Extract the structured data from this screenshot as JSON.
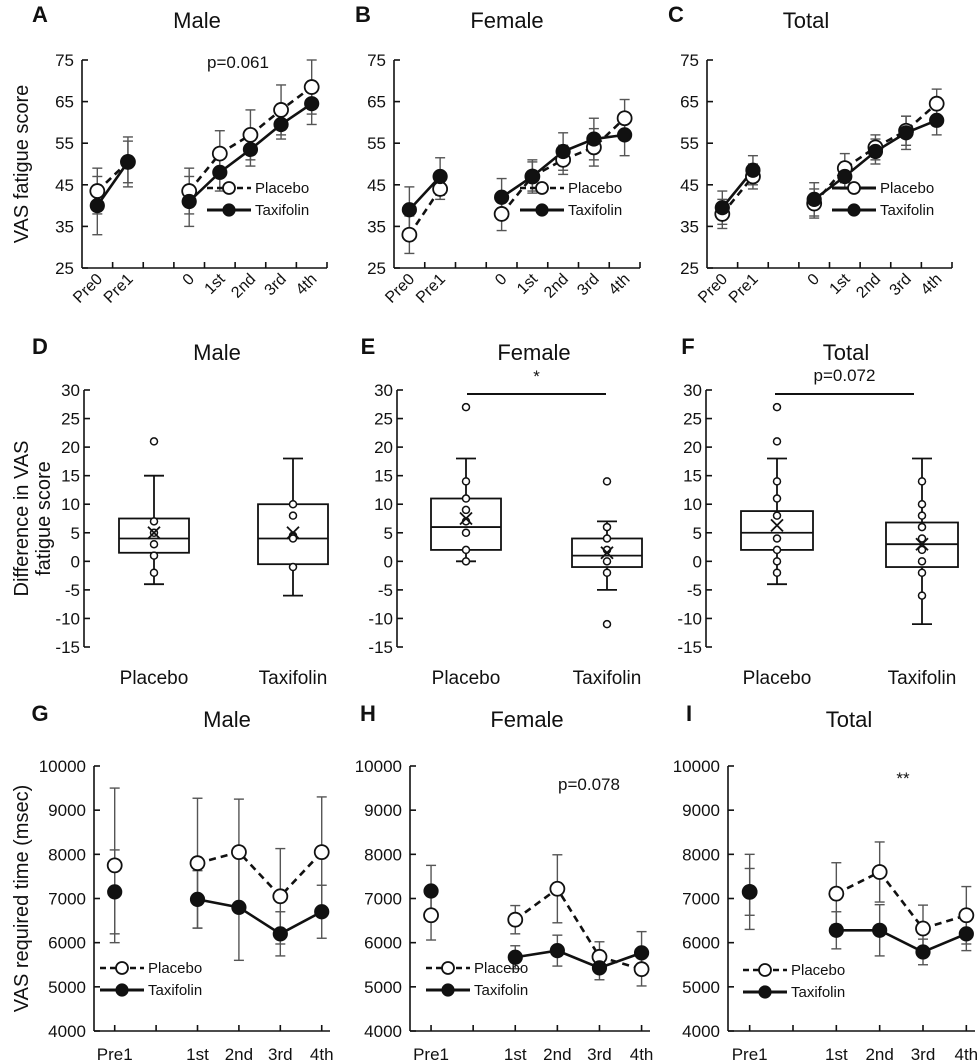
{
  "figure": {
    "legend": {
      "placebo": "Placebo",
      "taxifolin": "Taxifolin"
    },
    "colors": {
      "line": "#111111",
      "errorbar": "#555555",
      "open_marker_fill": "#ffffff",
      "filled_marker_fill": "#111111"
    }
  },
  "chart_data": [
    {
      "id": "A",
      "type": "line",
      "panel_letter": "A",
      "title": "Male",
      "ylabel": "VAS fatigue score",
      "xlabel": "",
      "categories": [
        "Pre0",
        "Pre1",
        "0",
        "1st",
        "2nd",
        "3rd",
        "4th"
      ],
      "ylim": [
        25,
        75
      ],
      "yticks": [
        25,
        35,
        45,
        55,
        65,
        75
      ],
      "annotation": "p=0.061",
      "legend_position": "lower-right",
      "series": [
        {
          "name": "Placebo",
          "style": "dashed-open",
          "values": [
            43.5,
            50.5,
            43.5,
            52.5,
            57,
            63,
            68.5
          ],
          "err": [
            5.5,
            6,
            5.5,
            5.5,
            6,
            6,
            6.5
          ]
        },
        {
          "name": "Taxifolin",
          "style": "solid-filled",
          "values": [
            40,
            50.5,
            41,
            48,
            53.5,
            59.5,
            64.5
          ],
          "err": [
            7,
            5,
            6,
            4.5,
            4,
            3.5,
            5
          ]
        }
      ]
    },
    {
      "id": "B",
      "type": "line",
      "panel_letter": "B",
      "title": "Female",
      "ylabel": "",
      "xlabel": "",
      "categories": [
        "Pre0",
        "Pre1",
        "0",
        "1st",
        "2nd",
        "3rd",
        "4th"
      ],
      "ylim": [
        25,
        75
      ],
      "yticks": [
        25,
        35,
        45,
        55,
        65,
        75
      ],
      "annotation": "",
      "legend_position": "lower-right",
      "series": [
        {
          "name": "Placebo",
          "style": "dashed-open",
          "values": [
            33,
            44,
            38,
            47,
            51,
            54,
            61
          ],
          "err": [
            4.5,
            2.5,
            4,
            4,
            3.5,
            4.5,
            4.5
          ]
        },
        {
          "name": "Taxifolin",
          "style": "solid-filled",
          "values": [
            39,
            47,
            42,
            47,
            53,
            56,
            57
          ],
          "err": [
            5.5,
            4.5,
            4.5,
            3.5,
            4.5,
            5,
            5
          ]
        }
      ]
    },
    {
      "id": "C",
      "type": "line",
      "panel_letter": "C",
      "title": "Total",
      "ylabel": "",
      "xlabel": "",
      "categories": [
        "Pre0",
        "Pre1",
        "0",
        "1st",
        "2nd",
        "3rd",
        "4th"
      ],
      "ylim": [
        25,
        75
      ],
      "yticks": [
        25,
        35,
        45,
        55,
        65,
        75
      ],
      "annotation": "",
      "legend_position": "lower-right",
      "series": [
        {
          "name": "Placebo",
          "style": "dashed-open",
          "values": [
            38,
            47,
            40.5,
            49,
            54,
            58,
            64.5
          ],
          "err": [
            3.5,
            3,
            3.5,
            3.5,
            3,
            3.5,
            3.5
          ]
        },
        {
          "name": "Taxifolin",
          "style": "solid-filled",
          "values": [
            39.5,
            48.5,
            41.5,
            47,
            53,
            57.5,
            60.5
          ],
          "err": [
            4,
            3.5,
            4,
            3,
            3,
            4,
            3.5
          ]
        }
      ]
    },
    {
      "id": "D",
      "type": "box",
      "panel_letter": "D",
      "title": "Male",
      "ylabel": "Difference in VAS fatigue score",
      "categories": [
        "Placebo",
        "Taxifolin"
      ],
      "ylim": [
        -15,
        30
      ],
      "yticks": [
        -15,
        -10,
        -5,
        0,
        5,
        10,
        15,
        20,
        25,
        30
      ],
      "annotation": "",
      "significance_bar": false,
      "boxes": [
        {
          "name": "Placebo",
          "whisker_low": -4,
          "q1": 1.5,
          "median": 4,
          "q3": 7.5,
          "whisker_high": 15,
          "mean": 5,
          "points": [
            21,
            7,
            5,
            3,
            1,
            -2
          ]
        },
        {
          "name": "Taxifolin",
          "whisker_low": -6,
          "q1": -0.5,
          "median": 4,
          "q3": 10,
          "whisker_high": 18,
          "mean": 5,
          "points": [
            10,
            8,
            4.5,
            4,
            -1
          ]
        }
      ]
    },
    {
      "id": "E",
      "type": "box",
      "panel_letter": "E",
      "title": "Female",
      "ylabel": "",
      "categories": [
        "Placebo",
        "Taxifolin"
      ],
      "ylim": [
        -15,
        30
      ],
      "yticks": [
        -15,
        -10,
        -5,
        0,
        5,
        10,
        15,
        20,
        25,
        30
      ],
      "annotation": "*",
      "significance_bar": true,
      "boxes": [
        {
          "name": "Placebo",
          "whisker_low": 0,
          "q1": 2,
          "median": 6,
          "q3": 11,
          "whisker_high": 18,
          "mean": 7.5,
          "points": [
            27,
            14,
            11,
            9,
            7,
            5,
            2,
            0
          ]
        },
        {
          "name": "Taxifolin",
          "whisker_low": -5,
          "q1": -1,
          "median": 1,
          "q3": 4,
          "whisker_high": 7,
          "mean": 1.5,
          "points": [
            14,
            6,
            4,
            2,
            0,
            -2,
            -11
          ]
        }
      ]
    },
    {
      "id": "F",
      "type": "box",
      "panel_letter": "F",
      "title": "Total",
      "ylabel": "",
      "categories": [
        "Placebo",
        "Taxifolin"
      ],
      "ylim": [
        -15,
        30
      ],
      "yticks": [
        -15,
        -10,
        -5,
        0,
        5,
        10,
        15,
        20,
        25,
        30
      ],
      "annotation": "p=0.072",
      "significance_bar": true,
      "boxes": [
        {
          "name": "Placebo",
          "whisker_low": -4,
          "q1": 2,
          "median": 5,
          "q3": 8.8,
          "whisker_high": 18,
          "mean": 6.3,
          "points": [
            27,
            21,
            14,
            11,
            8,
            4,
            2,
            0,
            -2
          ]
        },
        {
          "name": "Taxifolin",
          "whisker_low": -11,
          "q1": -1,
          "median": 3,
          "q3": 6.8,
          "whisker_high": 18,
          "mean": 3,
          "points": [
            14,
            10,
            8,
            6,
            4,
            2,
            0,
            -2,
            -6
          ]
        }
      ]
    },
    {
      "id": "G",
      "type": "line",
      "panel_letter": "G",
      "title": "Male",
      "ylabel": "VAS required time (msec)",
      "xlabel": "",
      "categories": [
        "Pre1",
        "1st",
        "2nd",
        "3rd",
        "4th"
      ],
      "ylim": [
        4000,
        10000
      ],
      "yticks": [
        4000,
        5000,
        6000,
        7000,
        8000,
        9000,
        10000
      ],
      "annotation": "",
      "legend_position": "lower-left",
      "series": [
        {
          "name": "Placebo",
          "style": "dashed-open",
          "values": [
            7750,
            7800,
            8050,
            7050,
            8050
          ],
          "err": [
            1750,
            1470,
            1200,
            1080,
            1250
          ]
        },
        {
          "name": "Taxifolin",
          "style": "solid-filled",
          "values": [
            7150,
            6980,
            6800,
            6200,
            6700
          ],
          "err": [
            950,
            650,
            1200,
            500,
            600
          ]
        }
      ]
    },
    {
      "id": "H",
      "type": "line",
      "panel_letter": "H",
      "title": "Female",
      "ylabel": "",
      "xlabel": "",
      "categories": [
        "Pre1",
        "1st",
        "2nd",
        "3rd",
        "4th"
      ],
      "ylim": [
        4000,
        10000
      ],
      "yticks": [
        4000,
        5000,
        6000,
        7000,
        8000,
        9000,
        10000
      ],
      "annotation": "p=0.078",
      "legend_position": "lower-left",
      "series": [
        {
          "name": "Placebo",
          "style": "dashed-open",
          "values": [
            6620,
            6520,
            7220,
            5680,
            5400
          ],
          "err": [
            560,
            320,
            770,
            340,
            380
          ]
        },
        {
          "name": "Taxifolin",
          "style": "solid-filled",
          "values": [
            7170,
            5670,
            5820,
            5430,
            5770
          ],
          "err": [
            580,
            260,
            350,
            270,
            480
          ]
        }
      ]
    },
    {
      "id": "I",
      "type": "line",
      "panel_letter": "I",
      "title": "Total",
      "ylabel": "",
      "xlabel": "",
      "categories": [
        "Pre1",
        "1st",
        "2nd",
        "3rd",
        "4th"
      ],
      "ylim": [
        4000,
        10000
      ],
      "yticks": [
        4000,
        5000,
        6000,
        7000,
        8000,
        9000,
        10000
      ],
      "annotation": "**",
      "legend_position": "lower-left",
      "series": [
        {
          "name": "Placebo",
          "style": "dashed-open",
          "values": [
            7150,
            7110,
            7600,
            6320,
            6620
          ],
          "err": [
            850,
            700,
            680,
            530,
            650
          ]
        },
        {
          "name": "Taxifolin",
          "style": "solid-filled",
          "values": [
            7150,
            6280,
            6280,
            5790,
            6200
          ],
          "err": [
            530,
            420,
            580,
            290,
            380
          ]
        }
      ]
    }
  ]
}
